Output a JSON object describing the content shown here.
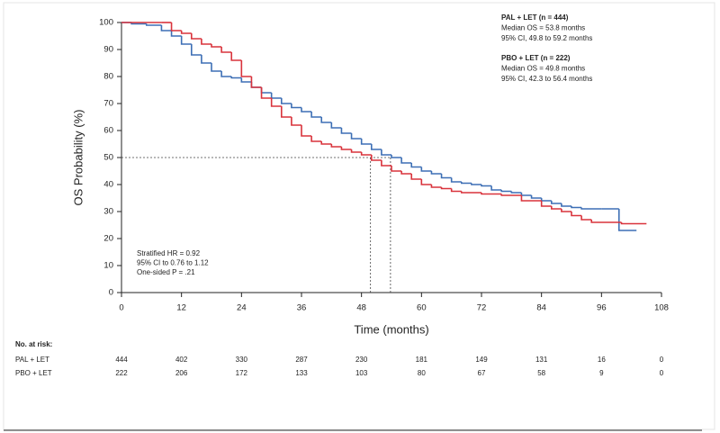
{
  "chart_data": {
    "type": "step",
    "y_label": "OS Probability (%)",
    "x_label": "Time (months)",
    "xlim": [
      0,
      108
    ],
    "xticks": [
      0,
      12,
      24,
      36,
      48,
      60,
      72,
      84,
      96,
      108
    ],
    "ylim": [
      0,
      100
    ],
    "yticks": [
      0,
      10,
      20,
      30,
      40,
      50,
      60,
      70,
      80,
      90,
      100
    ],
    "median_level": 50,
    "median_times": [
      49.8,
      53.8
    ],
    "series": [
      {
        "name": "PAL + LET (n = 444)",
        "color": "#3d6fb5",
        "details": [
          "Median OS = 53.8 months",
          "95% CI, 49.8 to 59.2 months"
        ],
        "x": [
          0,
          2,
          5,
          8,
          10,
          12,
          14,
          16,
          18,
          20,
          22,
          24,
          26,
          28,
          30,
          32,
          34,
          36,
          38,
          40,
          42,
          44,
          46,
          48,
          50,
          52,
          54,
          56,
          58,
          60,
          62,
          64,
          66,
          68,
          70,
          72,
          74,
          76,
          78,
          80,
          82,
          84,
          86,
          88,
          90,
          92,
          96,
          99.5,
          103
        ],
        "values": [
          100,
          99.5,
          99,
          97,
          95,
          92,
          88,
          85,
          82,
          80,
          79.5,
          78,
          76,
          74,
          72,
          70,
          68.5,
          67,
          65,
          63,
          61,
          59,
          57,
          55,
          53,
          51,
          50,
          48,
          46.5,
          45,
          44,
          42.5,
          41,
          40.5,
          40,
          39.5,
          38,
          37.5,
          37,
          36,
          35,
          34,
          33,
          32,
          31.5,
          31,
          31,
          23,
          23
        ]
      },
      {
        "name": "PBO + LET (n = 222)",
        "color": "#d9333c",
        "details": [
          "Median OS = 49.8 months",
          "95% CI, 42.3 to 56.4 months"
        ],
        "x": [
          0,
          8,
          10,
          12,
          14,
          16,
          18,
          20,
          22,
          24,
          26,
          28,
          30,
          32,
          34,
          36,
          38,
          40,
          42,
          44,
          46,
          48,
          50,
          52,
          54,
          56,
          58,
          60,
          62,
          64,
          66,
          68,
          72,
          76,
          80,
          84,
          86,
          88,
          90,
          92,
          94,
          100,
          105
        ],
        "values": [
          100,
          100,
          97,
          96,
          94,
          92,
          91,
          89,
          86,
          80,
          76,
          72,
          69,
          65,
          62,
          58,
          56,
          55,
          54,
          53,
          52,
          51,
          49,
          47,
          45,
          44,
          42,
          40,
          39,
          38.5,
          37.5,
          37,
          36.5,
          36,
          34,
          32,
          31,
          30,
          28.5,
          27,
          26,
          25.5,
          25.5
        ]
      }
    ],
    "annotation": [
      "Stratified HR = 0.92",
      "95% CI to 0.76 to 1.12",
      "One-sided P = .21"
    ],
    "risk_table": {
      "title": "No. at risk:",
      "rows": [
        {
          "name": "PAL + LET",
          "values": [
            444,
            402,
            330,
            287,
            230,
            181,
            149,
            131,
            16,
            0
          ]
        },
        {
          "name": "PBO + LET",
          "values": [
            222,
            206,
            172,
            133,
            103,
            80,
            67,
            58,
            9,
            0
          ]
        }
      ]
    }
  }
}
